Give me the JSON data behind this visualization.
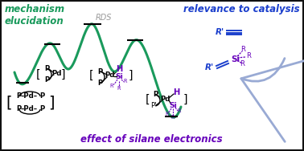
{
  "bg_color": "#ffffff",
  "border_color": "#111111",
  "curve_color": "#1a9a5c",
  "text_green_color": "#1a9a5c",
  "text_blue_color": "#1a3ecc",
  "text_purple_color": "#6600bb",
  "text_gray_color": "#999999",
  "text_black_color": "#111111",
  "arrow_color": "#99aad4",
  "title_mechanism": "mechanism\nelucidation",
  "title_relevance": "relevance to catalysis",
  "title_silane": "effect of silane electronics",
  "rds_label": "RDS",
  "fig_width": 3.78,
  "fig_height": 1.88
}
